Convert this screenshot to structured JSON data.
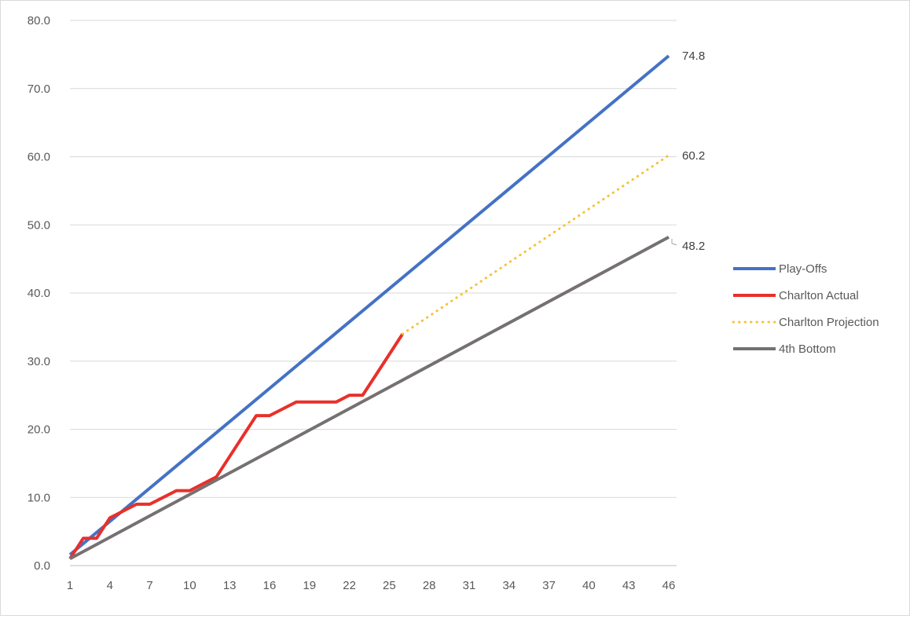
{
  "chart_data": {
    "type": "line",
    "title": "",
    "xlabel": "",
    "ylabel": "",
    "ylim": [
      0,
      80
    ],
    "xlim": [
      1,
      46
    ],
    "y_ticks": [
      "0.0",
      "10.0",
      "20.0",
      "30.0",
      "40.0",
      "50.0",
      "60.0",
      "70.0",
      "80.0"
    ],
    "x_ticks": [
      "1",
      "4",
      "7",
      "10",
      "13",
      "16",
      "19",
      "22",
      "25",
      "28",
      "31",
      "34",
      "37",
      "40",
      "43",
      "46"
    ],
    "grid": "horizontal",
    "legend_position": "right",
    "series": [
      {
        "name": "Play-Offs",
        "color": "#4472C4",
        "style": "solid",
        "x": [
          1,
          46
        ],
        "y": [
          1.6,
          74.8
        ],
        "end_label": "74.8"
      },
      {
        "name": "Charlton Actual",
        "color": "#E8302A",
        "style": "solid",
        "x": [
          1,
          2,
          3,
          4,
          5,
          6,
          7,
          8,
          9,
          10,
          11,
          12,
          13,
          14,
          15,
          16,
          17,
          18,
          19,
          20,
          21,
          22,
          23,
          24,
          25,
          26
        ],
        "y": [
          1,
          4,
          4,
          7,
          8,
          9,
          9,
          10,
          11,
          11,
          12,
          13,
          16,
          19,
          22,
          22,
          23,
          24,
          24,
          24,
          24,
          25,
          25,
          28,
          31,
          34
        ]
      },
      {
        "name": "Charlton Projection",
        "color": "#F5C33B",
        "style": "dotted",
        "x": [
          26,
          46
        ],
        "y": [
          34,
          60.2
        ],
        "end_label": "60.2"
      },
      {
        "name": "4th Bottom",
        "color": "#767171",
        "style": "solid",
        "x": [
          1,
          46
        ],
        "y": [
          1,
          48.2
        ],
        "end_label": "48.2"
      }
    ]
  }
}
